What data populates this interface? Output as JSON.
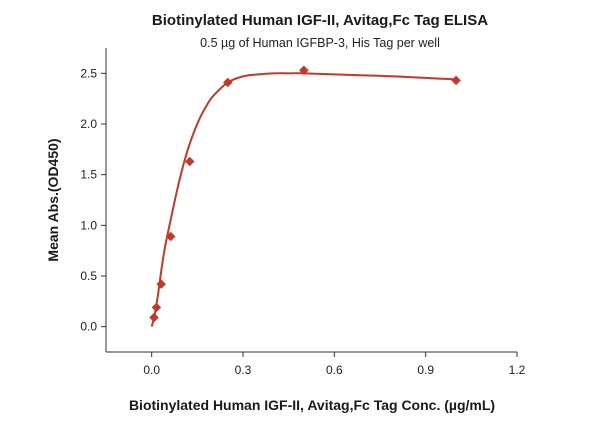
{
  "chart_data": {
    "type": "scatter",
    "title": "Biotinylated Human IGF-II, Avitag,Fc Tag ELISA",
    "subtitle": "0.5 µg of Human IGFBP-3, His Tag per well",
    "xlabel": "Biotinylated Human IGF-II, Avitag,Fc Tag Conc. (µg/mL)",
    "ylabel": "Mean Abs.(OD450)",
    "xlim": [
      -0.15,
      1.2
    ],
    "ylim": [
      -0.25,
      2.75
    ],
    "x_ticks": [
      0.0,
      0.3,
      0.6,
      0.9,
      1.2
    ],
    "x_tick_labels": [
      "0.0",
      "0.3",
      "0.6",
      "0.9",
      "1.2"
    ],
    "y_ticks": [
      0.0,
      0.5,
      1.0,
      1.5,
      2.0,
      2.5
    ],
    "y_tick_labels": [
      "0.0",
      "0.5",
      "1.0",
      "1.5",
      "2.0",
      "2.5"
    ],
    "grid": false,
    "legend": "none",
    "series": [
      {
        "marker": "diamond",
        "color": "#c0392b",
        "x": [
          0.0078,
          0.0156,
          0.03125,
          0.0625,
          0.125,
          0.25,
          0.5,
          1.0
        ],
        "y": [
          0.09,
          0.19,
          0.42,
          0.89,
          1.63,
          2.41,
          2.53,
          2.43
        ]
      }
    ],
    "fit_curve": {
      "color": "#c0392b",
      "x": [
        0.0,
        0.01,
        0.02,
        0.03,
        0.04,
        0.05,
        0.06,
        0.08,
        0.1,
        0.12,
        0.14,
        0.16,
        0.18,
        0.2,
        0.25,
        0.3,
        0.35,
        0.4,
        0.45,
        0.5,
        0.6,
        0.7,
        0.8,
        0.9,
        1.0
      ],
      "y": [
        0.0,
        0.12,
        0.3,
        0.52,
        0.72,
        0.88,
        1.02,
        1.3,
        1.55,
        1.76,
        1.93,
        2.07,
        2.18,
        2.27,
        2.41,
        2.47,
        2.49,
        2.5,
        2.5,
        2.5,
        2.49,
        2.48,
        2.47,
        2.455,
        2.44
      ]
    }
  }
}
